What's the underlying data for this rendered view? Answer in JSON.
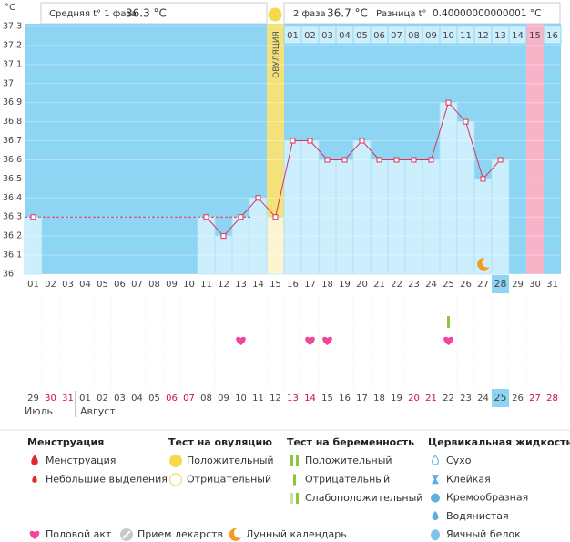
{
  "header": {
    "unit": "°C",
    "phase1_label": "Средняя t° 1 фаза",
    "phase1": {
      "value": 36.3,
      "label": "36.3 °C"
    },
    "phase2_label": "2 фаза",
    "phase2": {
      "value": 36.7,
      "label": "36.7 °C"
    },
    "diff_label": "Разница t°",
    "diff": {
      "value": 0.40000000000001,
      "label": "0.40000000000001 °C"
    }
  },
  "chart_data": {
    "type": "line",
    "color": "#d9335b",
    "categories": [
      "01",
      "02",
      "03",
      "04",
      "05",
      "06",
      "07",
      "08",
      "09",
      "10",
      "11",
      "12",
      "13",
      "14",
      "15",
      "16",
      "17",
      "18",
      "19",
      "20",
      "21",
      "22",
      "23",
      "24",
      "25",
      "26",
      "27",
      "28",
      "29",
      "30",
      "31"
    ],
    "values": [
      36.3,
      null,
      null,
      null,
      null,
      null,
      null,
      null,
      null,
      null,
      36.3,
      36.2,
      36.3,
      36.4,
      36.3,
      36.7,
      36.7,
      36.6,
      36.6,
      36.7,
      36.6,
      36.6,
      36.6,
      36.6,
      36.9,
      36.8,
      36.5,
      36.6,
      null,
      null,
      null
    ],
    "ylim": [
      36,
      37.3
    ],
    "yticks": [
      36,
      36.1,
      36.2,
      36.3,
      36.4,
      36.5,
      36.6,
      36.7,
      36.8,
      36.9,
      37,
      37.1,
      37.2,
      37.3
    ],
    "ovulation_day": 15,
    "ovulation_label": "ОВУЛЯЦИЯ",
    "expected_period_day": 30,
    "today": 28,
    "cycle_days_after_ovulation": [
      "01",
      "02",
      "03",
      "04",
      "05",
      "06",
      "07",
      "08",
      "09",
      "10",
      "11",
      "12",
      "13",
      "14",
      "15",
      "16"
    ],
    "intercourse_days": [
      13,
      17,
      18,
      25
    ],
    "pregnancy_test_weak_days": [
      25
    ],
    "moon_days": [
      27
    ],
    "calendar_days": [
      "29",
      "30",
      "31",
      "01",
      "02",
      "03",
      "04",
      "05",
      "06",
      "07",
      "08",
      "09",
      "10",
      "11",
      "12",
      "13",
      "14",
      "15",
      "16",
      "17",
      "18",
      "19",
      "20",
      "21",
      "22",
      "23",
      "24",
      "25",
      "26",
      "27",
      "28"
    ],
    "calendar_weekend_indices": [
      1,
      2,
      8,
      9,
      15,
      16,
      22,
      23,
      29,
      30
    ],
    "calendar_today_index": 27,
    "months": [
      "Июль",
      "Август"
    ]
  },
  "legend": {
    "sections": [
      {
        "title": "Менструация",
        "items": [
          "Менструация",
          "Небольшие выделения"
        ]
      },
      {
        "title": "Тест на овуляцию",
        "items": [
          "Положительный",
          "Отрицательный"
        ]
      },
      {
        "title": "Тест на беременность",
        "items": [
          "Положительный",
          "Отрицательный",
          "Слабоположительный"
        ]
      },
      {
        "title": "Цервикальная жидкость",
        "items": [
          "Сухо",
          "Клейкая",
          "Кремообразная",
          "Водянистая",
          "Яичный белок"
        ]
      }
    ],
    "bottom": [
      "Половой акт",
      "Прием лекарств",
      "Лунный календарь"
    ]
  }
}
